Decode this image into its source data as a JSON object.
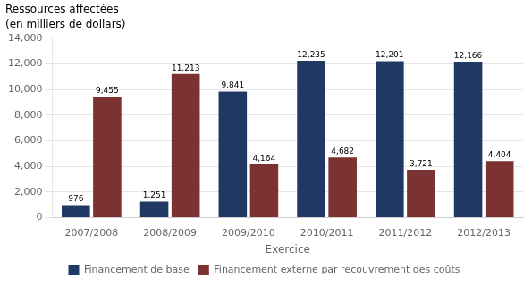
{
  "chart_data": {
    "type": "bar",
    "title": "Ressources affectées",
    "subtitle": "(en milliers de dollars)",
    "x_label": "Exercice",
    "categories": [
      "2007/2008",
      "2008/2009",
      "2009/2010",
      "2010/2011",
      "2011/2012",
      "2012/2013"
    ],
    "series": [
      {
        "name": "Financement de base",
        "color": "#1F3864",
        "values": [
          976,
          1251,
          9841,
          12235,
          12201,
          12166
        ],
        "value_labels": [
          "976",
          "1,251",
          "9,841",
          "12,235",
          "12,201",
          "12,166"
        ]
      },
      {
        "name": "Financement externe par recouvrement des coûts",
        "color": "#7B3232",
        "values": [
          9455,
          11213,
          4164,
          4682,
          3721,
          4404
        ],
        "value_labels": [
          "9,455",
          "11,213",
          "4,164",
          "4,682",
          "3,721",
          "4,404"
        ]
      }
    ],
    "ylim": [
      0,
      14000
    ],
    "yticks": [
      0,
      {
        "value": 2000,
        "label": "2,000"
      },
      {
        "value": 4000,
        "label": "4,000"
      },
      {
        "value": 6000,
        "label": "6,000"
      },
      {
        "value": 8000,
        "label": "8,000"
      },
      {
        "value": 10000,
        "label": "10,000"
      },
      {
        "value": 12000,
        "label": "12,000"
      },
      {
        "value": 14000,
        "label": "14,000"
      }
    ],
    "grid": true,
    "legend": "bottom",
    "data_labels": true
  }
}
